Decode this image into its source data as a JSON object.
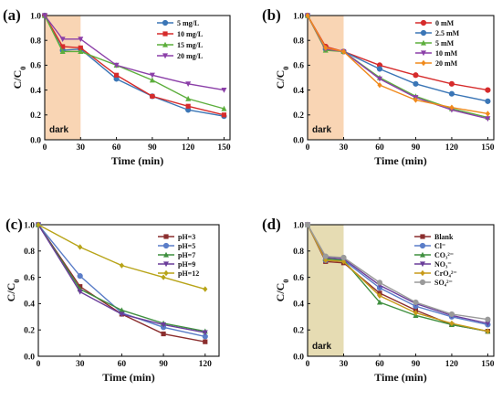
{
  "figure": {
    "panels": [
      "(a)",
      "(b)",
      "(c)",
      "(d)"
    ]
  },
  "chart_data": [
    {
      "panel": "(a)",
      "type": "line",
      "xlabel": "Time (min)",
      "ylabel": "C/C0",
      "xlim": [
        0,
        155
      ],
      "ylim": [
        0,
        1.0
      ],
      "xticks": [
        0,
        30,
        60,
        90,
        120,
        150
      ],
      "yticks": [
        0.0,
        0.2,
        0.4,
        0.6,
        0.8,
        1.0
      ],
      "dark_region": {
        "label": "dark",
        "x": [
          0,
          30
        ],
        "color": "#f9d5b4"
      },
      "legend_position": "top-right",
      "x": [
        0,
        15,
        30,
        60,
        90,
        120,
        150
      ],
      "series": [
        {
          "name": "5 mg/L",
          "color": "#3b76b6",
          "marker": "circle",
          "values": [
            1.0,
            0.72,
            0.73,
            0.49,
            0.35,
            0.24,
            0.19
          ]
        },
        {
          "name": "10 mg/L",
          "color": "#d62b2b",
          "marker": "square",
          "values": [
            1.0,
            0.75,
            0.74,
            0.52,
            0.35,
            0.27,
            0.2
          ]
        },
        {
          "name": "15 mg/L",
          "color": "#5cae3c",
          "marker": "triangle-up",
          "values": [
            1.0,
            0.71,
            0.71,
            0.6,
            0.48,
            0.33,
            0.25
          ]
        },
        {
          "name": "20 mg/L",
          "color": "#8b3fa8",
          "marker": "triangle-down",
          "values": [
            1.0,
            0.81,
            0.81,
            0.6,
            0.52,
            0.45,
            0.4
          ]
        }
      ]
    },
    {
      "panel": "(b)",
      "type": "line",
      "xlabel": "Time (min)",
      "ylabel": "C/C0",
      "xlim": [
        0,
        155
      ],
      "ylim": [
        0,
        1.0
      ],
      "xticks": [
        0,
        30,
        60,
        90,
        120,
        150
      ],
      "yticks": [
        0.0,
        0.2,
        0.4,
        0.6,
        0.8,
        1.0
      ],
      "dark_region": {
        "label": "dark",
        "x": [
          0,
          30
        ],
        "color": "#f9d5b4"
      },
      "legend_position": "top-right",
      "x": [
        0,
        15,
        30,
        60,
        90,
        120,
        150
      ],
      "series": [
        {
          "name": "0 mM",
          "color": "#d62b2b",
          "marker": "circle",
          "values": [
            1.0,
            0.75,
            0.71,
            0.6,
            0.52,
            0.45,
            0.4
          ]
        },
        {
          "name": "2.5 mM",
          "color": "#3b76b6",
          "marker": "circle",
          "values": [
            1.0,
            0.73,
            0.71,
            0.57,
            0.45,
            0.37,
            0.31
          ]
        },
        {
          "name": "5 mM",
          "color": "#5cae3c",
          "marker": "triangle-up",
          "values": [
            1.0,
            0.72,
            0.71,
            0.5,
            0.35,
            0.25,
            0.18
          ]
        },
        {
          "name": "10 mM",
          "color": "#8b3fa8",
          "marker": "triangle-down",
          "values": [
            1.0,
            0.73,
            0.71,
            0.49,
            0.34,
            0.24,
            0.17
          ]
        },
        {
          "name": "20 mM",
          "color": "#f08a1c",
          "marker": "diamond",
          "values": [
            1.0,
            0.74,
            0.71,
            0.44,
            0.32,
            0.26,
            0.21
          ]
        }
      ]
    },
    {
      "panel": "(c)",
      "type": "line",
      "xlabel": "Time (min)",
      "ylabel": "C/C0",
      "xlim": [
        0,
        130
      ],
      "ylim": [
        0,
        1.0
      ],
      "xticks": [
        0,
        30,
        60,
        90,
        120
      ],
      "yticks": [
        0.0,
        0.2,
        0.4,
        0.6,
        0.8,
        1.0
      ],
      "legend_position": "top-right",
      "x": [
        0,
        30,
        60,
        90,
        120
      ],
      "series": [
        {
          "name": "pH=3",
          "color": "#8b2e2e",
          "marker": "square",
          "values": [
            1.0,
            0.53,
            0.32,
            0.17,
            0.11
          ]
        },
        {
          "name": "pH=5",
          "color": "#5a7dc8",
          "marker": "circle",
          "values": [
            1.0,
            0.61,
            0.33,
            0.22,
            0.15
          ]
        },
        {
          "name": "pH=7",
          "color": "#3f8f3f",
          "marker": "triangle-up",
          "values": [
            1.0,
            0.51,
            0.35,
            0.25,
            0.19
          ]
        },
        {
          "name": "pH=9",
          "color": "#6a3d9a",
          "marker": "triangle-down",
          "values": [
            1.0,
            0.49,
            0.32,
            0.24,
            0.18
          ]
        },
        {
          "name": "pH=12",
          "color": "#b8a418",
          "marker": "diamond",
          "values": [
            1.0,
            0.83,
            0.69,
            0.6,
            0.51
          ]
        }
      ]
    },
    {
      "panel": "(d)",
      "type": "line",
      "xlabel": "Time (min)",
      "ylabel": "C/C0",
      "xlim": [
        0,
        155
      ],
      "ylim": [
        0,
        1.0
      ],
      "xticks": [
        0,
        30,
        60,
        90,
        120,
        150
      ],
      "yticks": [
        0.0,
        0.2,
        0.4,
        0.6,
        0.8,
        1.0
      ],
      "dark_region": {
        "label": "dark",
        "x": [
          0,
          30
        ],
        "color": "#e6dcb3"
      },
      "legend_position": "top-right",
      "x": [
        0,
        15,
        30,
        60,
        90,
        120,
        150
      ],
      "series": [
        {
          "name": "Blank",
          "color": "#8b2e2e",
          "marker": "square",
          "values": [
            1.0,
            0.72,
            0.71,
            0.48,
            0.35,
            0.24,
            0.19
          ]
        },
        {
          "name": "Cl⁻",
          "color": "#5a7dc8",
          "marker": "circle",
          "values": [
            1.0,
            0.73,
            0.73,
            0.52,
            0.38,
            0.3,
            0.24
          ]
        },
        {
          "name": "CO₃²⁻",
          "color": "#3f8f3f",
          "marker": "triangle-up",
          "values": [
            1.0,
            0.74,
            0.73,
            0.41,
            0.31,
            0.24,
            0.19
          ]
        },
        {
          "name": "NO₃⁻",
          "color": "#6a3d9a",
          "marker": "triangle-down",
          "values": [
            1.0,
            0.75,
            0.74,
            0.54,
            0.4,
            0.31,
            0.25
          ]
        },
        {
          "name": "CrO₄²⁻",
          "color": "#c89a1a",
          "marker": "diamond",
          "values": [
            1.0,
            0.73,
            0.72,
            0.46,
            0.33,
            0.25,
            0.19
          ]
        },
        {
          "name": "SO₄²⁻",
          "color": "#9a9a9a",
          "marker": "circle",
          "values": [
            1.0,
            0.76,
            0.75,
            0.56,
            0.41,
            0.32,
            0.28
          ]
        }
      ]
    }
  ]
}
